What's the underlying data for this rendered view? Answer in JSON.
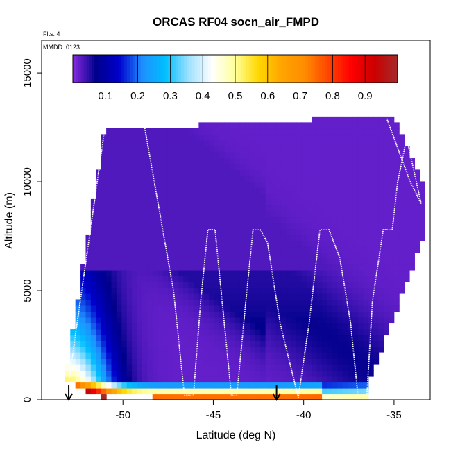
{
  "chart_data": {
    "type": "heatmap",
    "title": "ORCAS RF04 socn_air_FMPD",
    "notes": {
      "flights": "Flts: 4",
      "mmdd": "MMDD: 0123"
    },
    "xlabel": "Latitude (deg N)",
    "ylabel": "Altitude (m)",
    "xlim": [
      -54.5,
      -33
    ],
    "ylim": [
      0,
      16500
    ],
    "x_ticks": [
      {
        "value": -50,
        "label": "-50"
      },
      {
        "value": -45,
        "label": "-45"
      },
      {
        "value": -40,
        "label": "-40"
      },
      {
        "value": -35,
        "label": "-35"
      }
    ],
    "y_ticks": [
      {
        "value": 0,
        "label": "0"
      },
      {
        "value": 5000,
        "label": "5000"
      },
      {
        "value": 10000,
        "label": "10000"
      },
      {
        "value": 15000,
        "label": "15000"
      }
    ],
    "colorbar": {
      "min": 0,
      "max": 1,
      "ticks": [
        {
          "value": 0.1,
          "label": "0.1"
        },
        {
          "value": 0.2,
          "label": "0.2"
        },
        {
          "value": 0.3,
          "label": "0.3"
        },
        {
          "value": 0.4,
          "label": "0.4"
        },
        {
          "value": 0.5,
          "label": "0.5"
        },
        {
          "value": 0.6,
          "label": "0.6"
        },
        {
          "value": 0.7,
          "label": "0.7"
        },
        {
          "value": 0.8,
          "label": "0.8"
        },
        {
          "value": 0.9,
          "label": "0.9"
        }
      ],
      "colors": [
        "#8a2be2",
        "#00008b",
        "#0000cd",
        "#1e90ff",
        "#00bfff",
        "#a0e0ff",
        "#ffffff",
        "#ffff99",
        "#ffd700",
        "#ffa500",
        "#ff8c00",
        "#ff4500",
        "#ff0000",
        "#cc0000",
        "#a52a2a"
      ]
    },
    "annotations": {
      "arrow_lats": [
        -53,
        -41.5
      ]
    },
    "flight_track": {
      "lat": [
        -53,
        -51,
        -48.8,
        -47.2,
        -46.6,
        -46.1,
        -45.7,
        -45.3,
        -44.9,
        -44.0,
        -43.7,
        -43.2,
        -42.8,
        -42.4,
        -42.0,
        -41.3,
        -40.3,
        -39.7,
        -39.1,
        -38.6,
        -38.0,
        -37.4,
        -37.0,
        -36.5,
        -36.2,
        -35.6,
        -35.1,
        -34.8,
        -34.3,
        -33.5,
        -34.1,
        -35.4
      ],
      "alt": [
        800,
        12500,
        12500,
        5000,
        200,
        200,
        4500,
        7800,
        7800,
        200,
        200,
        4500,
        7800,
        7800,
        7200,
        3500,
        100,
        3500,
        7800,
        7800,
        6500,
        3500,
        200,
        200,
        4500,
        7800,
        7800,
        10000,
        12000,
        9000,
        10000,
        12900
      ]
    }
  }
}
